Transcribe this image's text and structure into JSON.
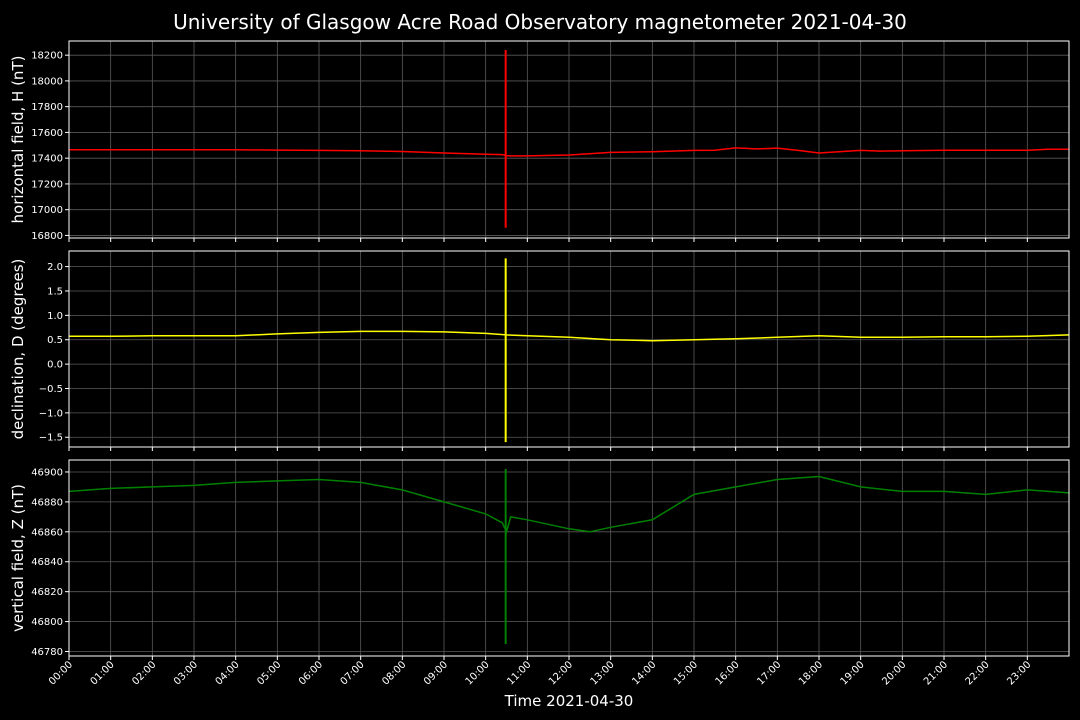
{
  "title": "University of Glasgow Acre Road Observatory magnetometer 2021-04-30",
  "chart_data": {
    "type": "line",
    "title": "University of Glasgow Acre Road Observatory magnetometer 2021-04-30",
    "xlabel": "Time 2021-04-30",
    "x_unit": "hours",
    "xlim": [
      0,
      24
    ],
    "x_ticks": [
      "00:00",
      "01:00",
      "02:00",
      "03:00",
      "04:00",
      "05:00",
      "06:00",
      "07:00",
      "08:00",
      "09:00",
      "10:00",
      "11:00",
      "12:00",
      "13:00",
      "14:00",
      "15:00",
      "16:00",
      "17:00",
      "18:00",
      "19:00",
      "20:00",
      "21:00",
      "22:00",
      "23:00"
    ],
    "grid": true,
    "panels": [
      {
        "ylabel": "horizontal field, H (nT)",
        "color": "#ff0000",
        "ylim": [
          16780,
          18310
        ],
        "y_ticks": [
          16800,
          17000,
          17200,
          17400,
          17600,
          17800,
          18000,
          18200
        ],
        "y_tick_labels": [
          "16800",
          "17000",
          "17200",
          "17400",
          "17600",
          "17800",
          "18000",
          "18200"
        ],
        "x": [
          0,
          1,
          2,
          3,
          4,
          5,
          6,
          7,
          8,
          9,
          10,
          10.4,
          10.5,
          10.6,
          11,
          12,
          13,
          14,
          15,
          15.5,
          16,
          16.5,
          17,
          17.5,
          18,
          19,
          19.5,
          20,
          21,
          22,
          23,
          23.5,
          24
        ],
        "y": [
          17465,
          17465,
          17465,
          17465,
          17465,
          17463,
          17460,
          17458,
          17452,
          17440,
          17430,
          17428,
          17420,
          17418,
          17418,
          17425,
          17445,
          17450,
          17460,
          17462,
          17480,
          17472,
          17478,
          17460,
          17440,
          17460,
          17455,
          17458,
          17462,
          17462,
          17462,
          17470,
          17470
        ],
        "spike": {
          "x": 10.48,
          "min": 16860,
          "max": 18240
        }
      },
      {
        "ylabel": "declination, D (degrees)",
        "color": "#ffff00",
        "ylim": [
          -1.7,
          2.32
        ],
        "y_ticks": [
          -1.5,
          -1.0,
          -0.5,
          0.0,
          0.5,
          1.0,
          1.5,
          2.0
        ],
        "y_tick_labels": [
          "−1.5",
          "−1.0",
          "−0.5",
          "0.0",
          "0.5",
          "1.0",
          "1.5",
          "2.0"
        ],
        "x": [
          0,
          1,
          2,
          3,
          4,
          5,
          6,
          7,
          8,
          9,
          10,
          10.5,
          11,
          12,
          13,
          14,
          15,
          16,
          17,
          18,
          19,
          20,
          21,
          22,
          23,
          24
        ],
        "y": [
          0.57,
          0.57,
          0.58,
          0.58,
          0.58,
          0.62,
          0.65,
          0.67,
          0.67,
          0.66,
          0.63,
          0.6,
          0.58,
          0.55,
          0.5,
          0.48,
          0.5,
          0.52,
          0.55,
          0.58,
          0.55,
          0.55,
          0.56,
          0.56,
          0.57,
          0.6
        ],
        "spike": {
          "x": 10.48,
          "min": -1.6,
          "max": 2.17
        }
      },
      {
        "ylabel": "vertical field, Z (nT)",
        "color": "#008000",
        "ylim": [
          46777,
          46908
        ],
        "y_ticks": [
          46780,
          46800,
          46820,
          46840,
          46860,
          46880,
          46900
        ],
        "y_tick_labels": [
          "46780",
          "46800",
          "46820",
          "46840",
          "46860",
          "46880",
          "46900"
        ],
        "x": [
          0,
          1,
          2,
          3,
          4,
          5,
          6,
          7,
          8,
          9,
          10,
          10.4,
          10.5,
          10.6,
          11,
          12,
          12.5,
          13,
          14,
          15,
          16,
          17,
          18,
          19,
          20,
          21,
          22,
          23,
          24
        ],
        "y": [
          46887,
          46889,
          46890,
          46891,
          46893,
          46894,
          46895,
          46893,
          46888,
          46880,
          46872,
          46866,
          46860,
          46870,
          46868,
          46862,
          46860,
          46863,
          46868,
          46885,
          46890,
          46895,
          46897,
          46890,
          46887,
          46887,
          46885,
          46888,
          46886
        ],
        "spike": {
          "x": 10.48,
          "min": 46785,
          "max": 46902
        }
      }
    ]
  }
}
